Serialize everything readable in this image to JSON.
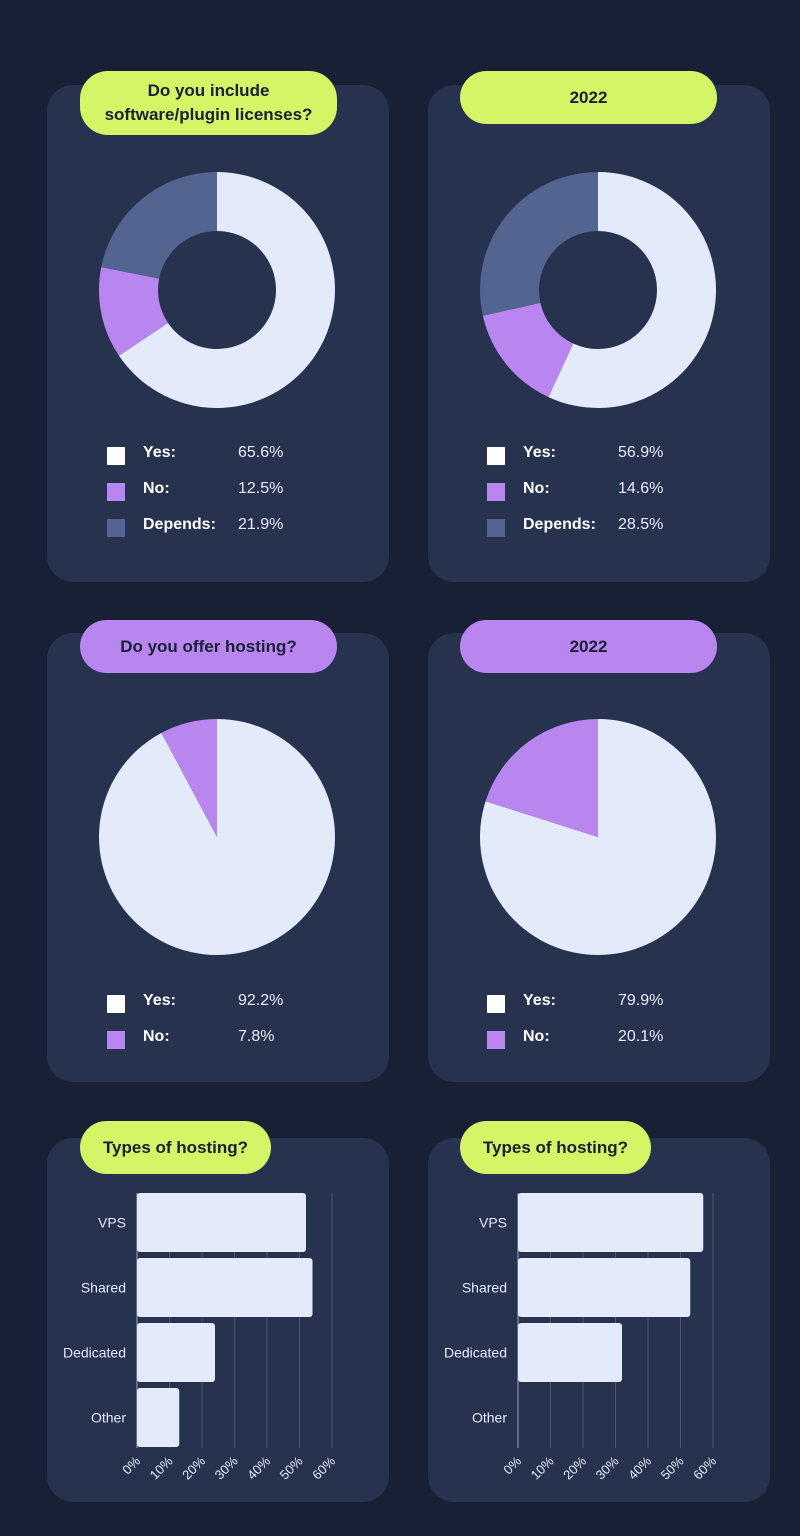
{
  "colors": {
    "background": "#182035",
    "card": "#27324f",
    "yes": "#e3ebfa",
    "no": "#b886ee",
    "depends": "#52648f",
    "green_accent": "#d3f566",
    "purple_accent": "#b886ee",
    "yes_swatch": "#ffffff"
  },
  "labels": {
    "yes": "Yes:",
    "no": "No:",
    "depends": "Depends:"
  },
  "chart_data": [
    {
      "type": "pie",
      "variant": "donut",
      "title": "Do you include\nsoftware/plugin licenses?",
      "slices": [
        {
          "label": "Yes:",
          "value": 65.6,
          "display": "65.6%"
        },
        {
          "label": "No:",
          "value": 12.5,
          "display": "12.5%"
        },
        {
          "label": "Depends:",
          "value": 21.9,
          "display": "21.9%"
        }
      ]
    },
    {
      "type": "pie",
      "variant": "donut",
      "title": "2022",
      "slices": [
        {
          "label": "Yes:",
          "value": 56.9,
          "display": "56.9%"
        },
        {
          "label": "No:",
          "value": 14.6,
          "display": "14.6%"
        },
        {
          "label": "Depends:",
          "value": 28.5,
          "display": "28.5%"
        }
      ]
    },
    {
      "type": "pie",
      "title": "Do you offer hosting?",
      "slices": [
        {
          "label": "Yes:",
          "value": 92.2,
          "display": "92.2%"
        },
        {
          "label": "No:",
          "value": 7.8,
          "display": "7.8%"
        }
      ]
    },
    {
      "type": "pie",
      "title": "2022",
      "slices": [
        {
          "label": "Yes:",
          "value": 79.9,
          "display": "79.9%"
        },
        {
          "label": "No:",
          "value": 20.1,
          "display": "20.1%"
        }
      ]
    },
    {
      "type": "bar",
      "orientation": "horizontal",
      "title": "Types of hosting?",
      "categories": [
        "VPS",
        "Shared",
        "Dedicated",
        "Other"
      ],
      "values": [
        52,
        54,
        24,
        13
      ],
      "xlim": [
        0,
        60
      ],
      "xticks": [
        "0%",
        "10%",
        "20%",
        "30%",
        "40%",
        "50%",
        "60%"
      ],
      "grid": true
    },
    {
      "type": "bar",
      "orientation": "horizontal",
      "title": "Types of hosting?",
      "categories": [
        "VPS",
        "Shared",
        "Dedicated",
        "Other"
      ],
      "values": [
        57,
        53,
        32,
        0
      ],
      "xlim": [
        0,
        60
      ],
      "xticks": [
        "0%",
        "10%",
        "20%",
        "30%",
        "40%",
        "50%",
        "60%"
      ],
      "grid": true
    }
  ]
}
